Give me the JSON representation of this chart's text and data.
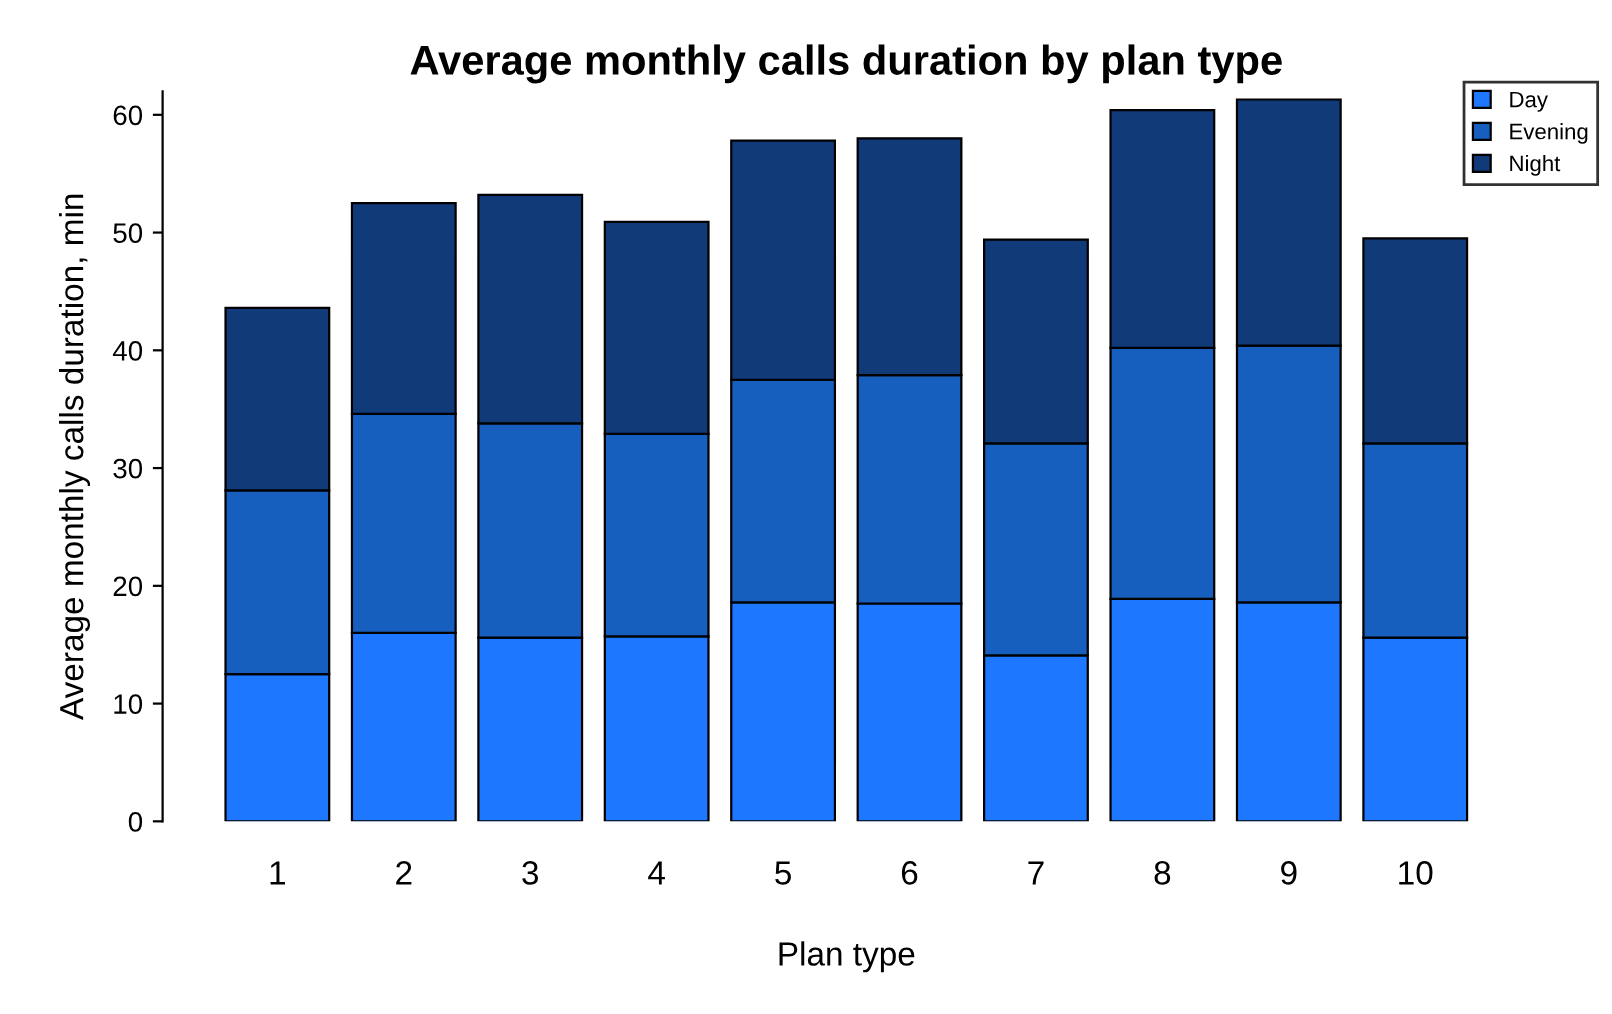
{
  "chart_data": {
    "type": "bar",
    "stacked": true,
    "title": "Average monthly calls duration by plan type",
    "xlabel": "Plan type",
    "ylabel": "Average monthly calls duration, min",
    "categories": [
      "1",
      "2",
      "3",
      "4",
      "5",
      "6",
      "7",
      "8",
      "9",
      "10"
    ],
    "series": [
      {
        "name": "Day",
        "color": "#1e78ff",
        "values": [
          12.5,
          16.0,
          15.6,
          15.7,
          18.6,
          18.5,
          14.1,
          18.9,
          18.6,
          15.6
        ]
      },
      {
        "name": "Evening",
        "color": "#165fbf",
        "values": [
          15.6,
          18.6,
          18.2,
          17.2,
          18.9,
          19.4,
          18.0,
          21.3,
          21.8,
          16.5
        ]
      },
      {
        "name": "Night",
        "color": "#103a78",
        "values": [
          15.5,
          17.9,
          19.4,
          18.0,
          20.3,
          20.1,
          17.3,
          20.2,
          20.9,
          17.4
        ]
      }
    ],
    "ylim": [
      0,
      62
    ],
    "yticks": [
      0,
      10,
      20,
      30,
      40,
      50,
      60
    ],
    "grid": false,
    "legend": "top right"
  }
}
